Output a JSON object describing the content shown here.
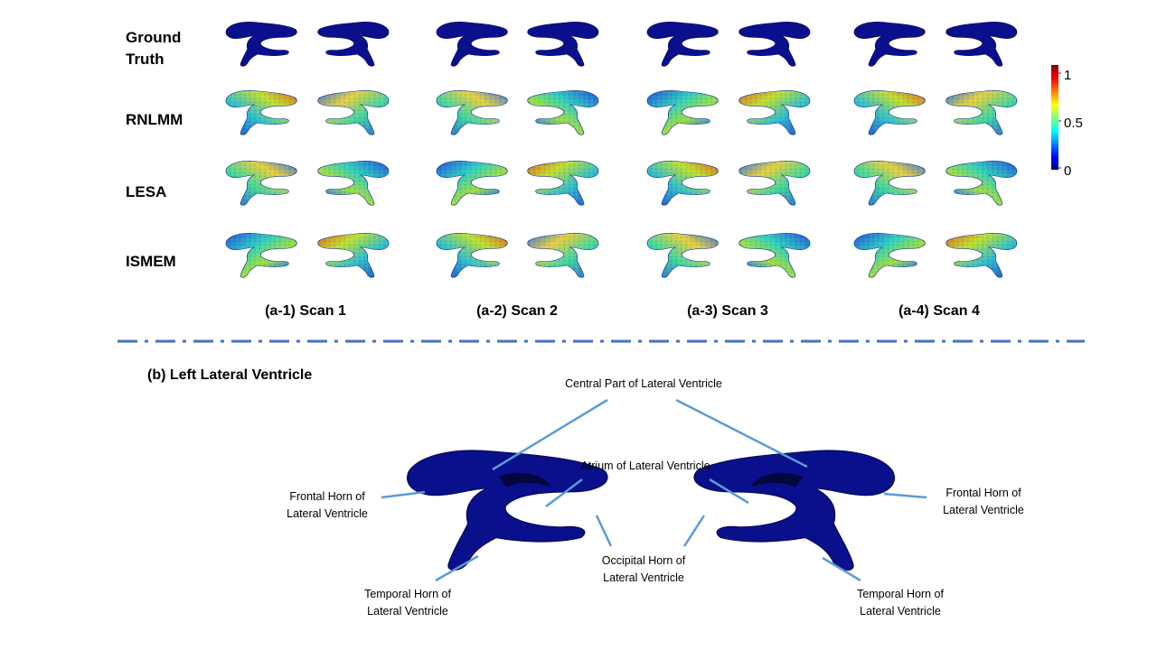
{
  "rows": [
    {
      "label_line1": "Ground",
      "label_line2": "Truth",
      "style": "gt"
    },
    {
      "label_line1": "RNLMM",
      "label_line2": "",
      "style": "err"
    },
    {
      "label_line1": "LESA",
      "label_line2": "",
      "style": "err"
    },
    {
      "label_line1": "ISMEM",
      "label_line2": "",
      "style": "err"
    }
  ],
  "scans": [
    {
      "label": "(a-1) Scan 1"
    },
    {
      "label": "(a-2) Scan 2"
    },
    {
      "label": "(a-3) Scan 3"
    },
    {
      "label": "(a-4) Scan 4"
    }
  ],
  "colorbar": {
    "ticks": [
      {
        "label": "1",
        "value": 1.0
      },
      {
        "label": "0.5",
        "value": 0.5
      },
      {
        "label": "0",
        "value": 0.0
      }
    ],
    "colors": [
      "#00007f",
      "#0000ff",
      "#00ffff",
      "#ffff00",
      "#ff0000",
      "#7f0000"
    ]
  },
  "section_b": {
    "title": "(b) Left Lateral Ventricle",
    "labels": {
      "central_line1": "Central Part of Lateral Ventricle",
      "atrium_line1": "Atrium of Lateral Ventricle",
      "frontal_left_line1": "Frontal Horn of",
      "frontal_left_line2": "Lateral Ventricle",
      "frontal_right_line1": "Frontal Horn of",
      "frontal_right_line2": "Lateral Ventricle",
      "occipital_line1": "Occipital Horn of",
      "occipital_line2": "Lateral Ventricle",
      "temporal_left_line1": "Temporal Horn of",
      "temporal_left_line2": "Lateral Ventricle",
      "temporal_right_line1": "Temporal Horn of",
      "temporal_right_line2": "Lateral Ventricle"
    }
  },
  "colors": {
    "ventricle_blue": "#0a0f8c",
    "leader_line": "#5b9bd5",
    "divider": "#4472c4"
  }
}
